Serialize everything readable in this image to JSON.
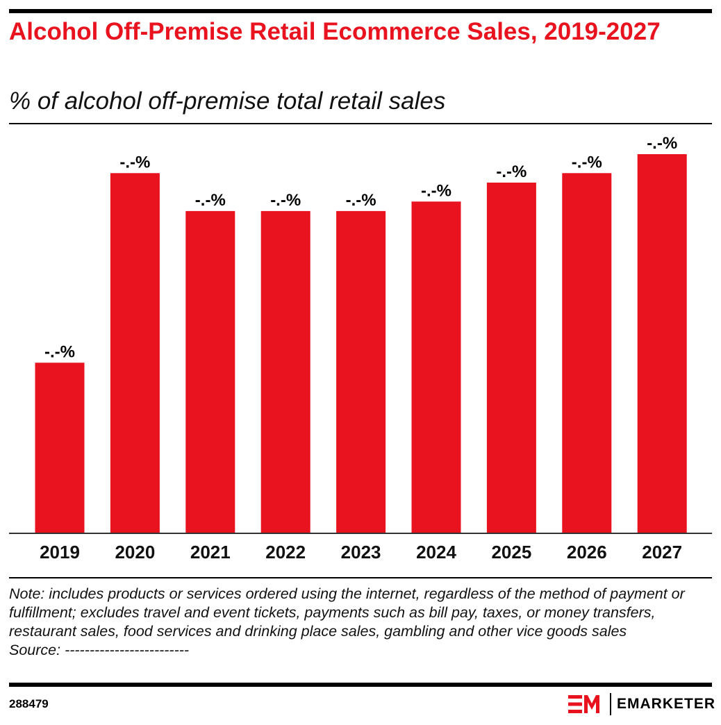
{
  "header": {
    "title": "Alcohol Off-Premise Retail Ecommerce Sales, 2019-2027",
    "subtitle": "% of alcohol off-premise total retail sales"
  },
  "chart_data": {
    "type": "bar",
    "title": "Alcohol Off-Premise Retail Ecommerce Sales, 2019-2027",
    "subtitle": "% of alcohol off-premise total retail sales",
    "categories": [
      "2019",
      "2020",
      "2021",
      "2022",
      "2023",
      "2024",
      "2025",
      "2026",
      "2027"
    ],
    "values": [
      1.8,
      3.8,
      3.4,
      3.4,
      3.4,
      3.5,
      3.7,
      3.8,
      4.0
    ],
    "data_labels": [
      "-.-%",
      "-.-%",
      "-.-%",
      "-.-%",
      "-.-%",
      "-.-%",
      "-.-%",
      "-.-%",
      "-.-%"
    ],
    "ylim": [
      0,
      4.0
    ],
    "grid": false,
    "bar_color": "#e8131f"
  },
  "footer": {
    "note": "Note: includes products or services ordered using the internet, regardless of the method of payment or fulfillment; excludes travel and event tickets, payments such as bill pay, taxes, or money transfers, restaurant sales, food services and drinking place sales, gambling and other vice goods sales",
    "source": "Source: -------------------------",
    "chart_id": "288479",
    "brand": "EMARKETER"
  }
}
